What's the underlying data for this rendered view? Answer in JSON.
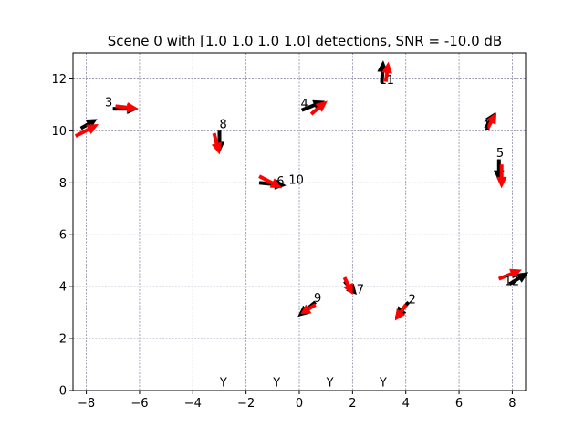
{
  "chart_data": {
    "type": "quiver",
    "title": "Scene 0 with [1.0 1.0 1.0 1.0] detections, SNR = -10.0 dB",
    "xlabel": "",
    "ylabel": "",
    "xlim": [
      -8.5,
      8.5
    ],
    "ylim": [
      0,
      13
    ],
    "xticks": [
      -8,
      -6,
      -4,
      -2,
      0,
      2,
      4,
      6,
      8
    ],
    "yticks": [
      0,
      2,
      4,
      6,
      8,
      10,
      12
    ],
    "grid": true,
    "colors": {
      "truth": "#000000",
      "estimate": "#ff0000",
      "grid": "#8a8aa8"
    },
    "series": [
      {
        "color": "#000000",
        "arrows": [
          {
            "x": -8.2,
            "y": 10.1,
            "dx": 0.6,
            "dy": 0.35
          },
          {
            "x": -7.0,
            "y": 10.85,
            "dx": 0.95,
            "dy": 0.0
          },
          {
            "x": -3.0,
            "y": 10.0,
            "dx": 0.0,
            "dy": -0.85
          },
          {
            "x": 0.1,
            "y": 10.8,
            "dx": 0.85,
            "dy": 0.35
          },
          {
            "x": 3.1,
            "y": 11.85,
            "dx": 0.05,
            "dy": 0.85
          },
          {
            "x": 7.0,
            "y": 10.1,
            "dx": 0.35,
            "dy": 0.6
          },
          {
            "x": 7.5,
            "y": 8.9,
            "dx": 0.0,
            "dy": -0.85
          },
          {
            "x": -1.5,
            "y": 8.0,
            "dx": 1.0,
            "dy": -0.1
          },
          {
            "x": 7.9,
            "y": 4.1,
            "dx": 0.7,
            "dy": 0.45
          },
          {
            "x": 1.7,
            "y": 4.2,
            "dx": 0.45,
            "dy": -0.5
          },
          {
            "x": 4.1,
            "y": 3.4,
            "dx": -0.5,
            "dy": -0.6
          },
          {
            "x": 0.6,
            "y": 3.4,
            "dx": -0.65,
            "dy": -0.55
          }
        ]
      },
      {
        "color": "#ff0000",
        "arrows": [
          {
            "x": -8.4,
            "y": 9.8,
            "dx": 0.85,
            "dy": 0.45
          },
          {
            "x": -6.9,
            "y": 10.95,
            "dx": 0.85,
            "dy": -0.1
          },
          {
            "x": -3.2,
            "y": 9.9,
            "dx": 0.2,
            "dy": -0.8
          },
          {
            "x": 0.45,
            "y": 10.65,
            "dx": 0.6,
            "dy": 0.5
          },
          {
            "x": 3.25,
            "y": 11.9,
            "dx": 0.1,
            "dy": 0.75
          },
          {
            "x": 7.05,
            "y": 10.05,
            "dx": 0.35,
            "dy": 0.65
          },
          {
            "x": 7.6,
            "y": 8.7,
            "dx": 0.0,
            "dy": -0.9
          },
          {
            "x": -1.5,
            "y": 8.25,
            "dx": 0.85,
            "dy": -0.45
          },
          {
            "x": 7.5,
            "y": 4.3,
            "dx": 0.85,
            "dy": 0.35
          },
          {
            "x": 1.7,
            "y": 4.35,
            "dx": 0.3,
            "dy": -0.65
          },
          {
            "x": 4.0,
            "y": 3.3,
            "dx": -0.4,
            "dy": -0.6
          },
          {
            "x": 0.6,
            "y": 3.3,
            "dx": -0.55,
            "dy": -0.35
          }
        ]
      }
    ],
    "annotations": [
      {
        "text": "3",
        "x": -7.3,
        "y": 10.95
      },
      {
        "text": "8",
        "x": -3.0,
        "y": 10.1
      },
      {
        "text": "4",
        "x": 0.05,
        "y": 10.9
      },
      {
        "text": "11",
        "x": 3.0,
        "y": 11.8
      },
      {
        "text": "1",
        "x": 6.9,
        "y": 10.05
      },
      {
        "text": "5",
        "x": 7.4,
        "y": 9.0
      },
      {
        "text": "6",
        "x": -0.85,
        "y": 7.9
      },
      {
        "text": "10",
        "x": -0.4,
        "y": 7.95
      },
      {
        "text": "12",
        "x": 7.7,
        "y": 4.05
      },
      {
        "text": "7",
        "x": 2.15,
        "y": 3.75
      },
      {
        "text": "2",
        "x": 4.1,
        "y": 3.35
      },
      {
        "text": "9",
        "x": 0.55,
        "y": 3.4
      }
    ],
    "bottom_labels": [
      {
        "text": "Y",
        "x": -2.85,
        "y": 0.15
      },
      {
        "text": "Y",
        "x": -0.85,
        "y": 0.15
      },
      {
        "text": "Y",
        "x": 1.15,
        "y": 0.15
      },
      {
        "text": "Y",
        "x": 3.15,
        "y": 0.15
      }
    ]
  }
}
